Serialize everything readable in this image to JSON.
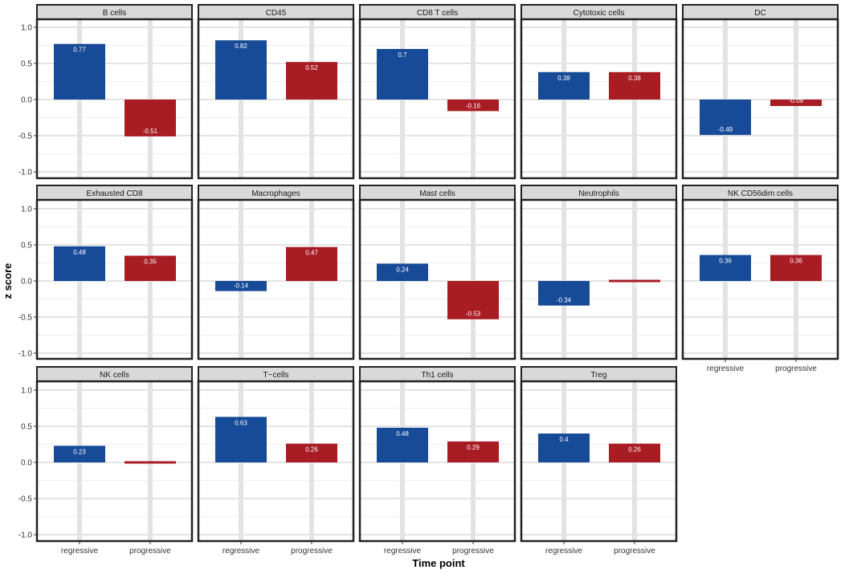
{
  "chart_data": {
    "type": "bar",
    "xlabel": "Time point",
    "ylabel": "z score",
    "ylim": [
      -1.0,
      1.0
    ],
    "yticks": [
      1.0,
      0.5,
      0.0,
      -0.5,
      -1.0
    ],
    "ytick_labels": [
      "1.0",
      "0.5",
      "0.0",
      "-0.5",
      "-1.0"
    ],
    "categories": [
      "regressive",
      "progressive"
    ],
    "colors": {
      "regressive": "#174a97",
      "progressive": "#a81c24"
    },
    "grid": true,
    "facets": [
      {
        "title": "B cells",
        "values": [
          0.77,
          -0.51
        ],
        "labels": [
          "0.77",
          "-0.51"
        ]
      },
      {
        "title": "CD45",
        "values": [
          0.82,
          0.52
        ],
        "labels": [
          "0.82",
          "0.52"
        ]
      },
      {
        "title": "CD8 T cells",
        "values": [
          0.7,
          -0.16
        ],
        "labels": [
          "0.7",
          "-0.16"
        ]
      },
      {
        "title": "Cytotoxic cells",
        "values": [
          0.38,
          0.38
        ],
        "labels": [
          "0.38",
          "0.38"
        ]
      },
      {
        "title": "DC",
        "values": [
          -0.49,
          -0.09
        ],
        "labels": [
          "-0.49",
          "-0.09"
        ]
      },
      {
        "title": "Exhausted CD8",
        "values": [
          0.48,
          0.35
        ],
        "labels": [
          "0.48",
          "0.35"
        ]
      },
      {
        "title": "Macrophages",
        "values": [
          -0.14,
          0.47
        ],
        "labels": [
          "-0.14",
          "0.47"
        ]
      },
      {
        "title": "Mast cells",
        "values": [
          0.24,
          -0.53
        ],
        "labels": [
          "0.24",
          "-0.53"
        ]
      },
      {
        "title": "Neutrophils",
        "values": [
          -0.34,
          0.03
        ],
        "labels": [
          "-0.34",
          "0.03"
        ]
      },
      {
        "title": "NK CD56dim cells",
        "values": [
          0.36,
          0.36
        ],
        "labels": [
          "0.36",
          "0.36"
        ]
      },
      {
        "title": "NK cells",
        "values": [
          0.23,
          -0.01
        ],
        "labels": [
          "0.23",
          "-0.01"
        ]
      },
      {
        "title": "T−cells",
        "values": [
          0.63,
          0.26
        ],
        "labels": [
          "0.63",
          "0.26"
        ]
      },
      {
        "title": "Th1 cells",
        "values": [
          0.48,
          0.29
        ],
        "labels": [
          "0.48",
          "0.29"
        ]
      },
      {
        "title": "Treg",
        "values": [
          0.4,
          0.26
        ],
        "labels": [
          "0.4",
          "0.26"
        ]
      }
    ]
  }
}
